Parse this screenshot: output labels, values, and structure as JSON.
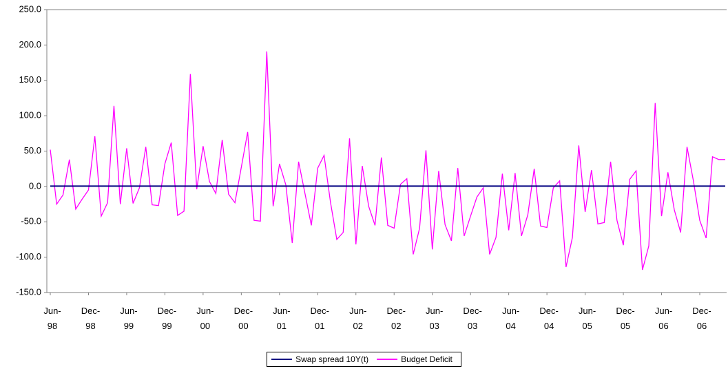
{
  "chart_data": {
    "type": "line",
    "categories": [
      "Jun-\n98",
      null,
      null,
      null,
      null,
      null,
      "Dec-\n98",
      null,
      null,
      null,
      null,
      null,
      "Jun-\n99",
      null,
      null,
      null,
      null,
      null,
      "Dec-\n99",
      null,
      null,
      null,
      null,
      null,
      "Jun-\n00",
      null,
      null,
      null,
      null,
      null,
      "Dec-\n00",
      null,
      null,
      null,
      null,
      null,
      "Jun-\n01",
      null,
      null,
      null,
      null,
      null,
      "Dec-\n01",
      null,
      null,
      null,
      null,
      null,
      "Jun-\n02",
      null,
      null,
      null,
      null,
      null,
      "Dec-\n02",
      null,
      null,
      null,
      null,
      null,
      "Jun-\n03",
      null,
      null,
      null,
      null,
      null,
      "Dec-\n03",
      null,
      null,
      null,
      null,
      null,
      "Jun-\n04",
      null,
      null,
      null,
      null,
      null,
      "Dec-\n04",
      null,
      null,
      null,
      null,
      null,
      "Jun-\n05",
      null,
      null,
      null,
      null,
      null,
      "Dec-\n05",
      null,
      null,
      null,
      null,
      null,
      "Jun-\n06",
      null,
      null,
      null,
      null,
      null,
      "Dec-\n06",
      null,
      null,
      null,
      null
    ],
    "series": [
      {
        "name": "Swap spread 10Y(t)",
        "color": "#000080",
        "values": [
          0.5,
          0.5,
          0.5,
          0.5,
          0.5,
          0.5,
          0.5,
          0.5,
          0.5,
          0.5,
          0.5,
          0.5,
          0.5,
          0.5,
          0.5,
          0.5,
          0.5,
          0.5,
          0.5,
          0.5,
          0.5,
          0.5,
          0.5,
          0.5,
          0.5,
          0.5,
          0.5,
          0.5,
          0.5,
          0.5,
          0.5,
          0.5,
          0.5,
          0.5,
          0.5,
          0.5,
          0.5,
          0.5,
          0.5,
          0.5,
          0.5,
          0.5,
          0.5,
          0.5,
          0.5,
          0.5,
          0.5,
          0.5,
          0.5,
          0.5,
          0.5,
          0.5,
          0.5,
          0.5,
          0.5,
          0.5,
          0.5,
          0.5,
          0.5,
          0.5,
          0.5,
          0.5,
          0.5,
          0.5,
          0.5,
          0.5,
          0.5,
          0.5,
          0.5,
          0.5,
          0.5,
          0.5,
          0.5,
          0.5,
          0.5,
          0.5,
          0.5,
          0.5,
          0.5,
          0.5,
          0.5,
          0.5,
          0.5,
          0.5,
          0.5,
          0.5,
          0.5,
          0.5,
          0.5,
          0.5,
          0.5,
          0.5,
          0.5,
          0.5,
          0.5,
          0.5,
          0.5,
          0.5,
          0.5,
          0.5,
          0.5,
          0.5,
          0.5,
          0.5,
          0.5,
          0.5,
          0.5
        ]
      },
      {
        "name": "Budget Deficit",
        "color": "#ff00ff",
        "values": [
          52,
          -25,
          -12,
          38,
          -32,
          -18,
          -5,
          71,
          -42,
          -23,
          114,
          -25,
          54,
          -24,
          -2,
          56,
          -26,
          -27,
          32,
          62,
          -41,
          -35,
          159,
          -4,
          57,
          7,
          -10,
          66,
          -11,
          -23,
          27,
          77,
          -48,
          -49,
          191,
          -28,
          32,
          2,
          -80,
          35,
          -10,
          -55,
          26,
          44,
          -22,
          -75,
          -65,
          68,
          -82,
          29,
          -28,
          -55,
          41,
          -55,
          -59,
          3,
          11,
          -96,
          -59,
          51,
          -89,
          22,
          -54,
          -77,
          26,
          -70,
          -42,
          -15,
          -2,
          -96,
          -72,
          18,
          -62,
          19,
          -70,
          -40,
          25,
          -56,
          -58,
          -2,
          8,
          -114,
          -72,
          58,
          -36,
          23,
          -53,
          -51,
          35,
          -48,
          -83,
          10,
          22,
          -118,
          -84,
          118,
          -42,
          20,
          -33,
          -65,
          56,
          8,
          -48,
          -73,
          42,
          38,
          38
        ]
      }
    ],
    "ylim": [
      -150,
      250
    ],
    "yticks": [
      {
        "value": -150,
        "label": "-150.0"
      },
      {
        "value": -100,
        "label": "-100.0"
      },
      {
        "value": -50,
        "label": "-50.0"
      },
      {
        "value": 0,
        "label": "0.0"
      },
      {
        "value": 50,
        "label": "50.0"
      },
      {
        "value": 100,
        "label": "100.0"
      },
      {
        "value": 150,
        "label": "150.0"
      },
      {
        "value": 200,
        "label": "200.0"
      },
      {
        "value": 250,
        "label": "250.0"
      }
    ],
    "grid": false
  }
}
